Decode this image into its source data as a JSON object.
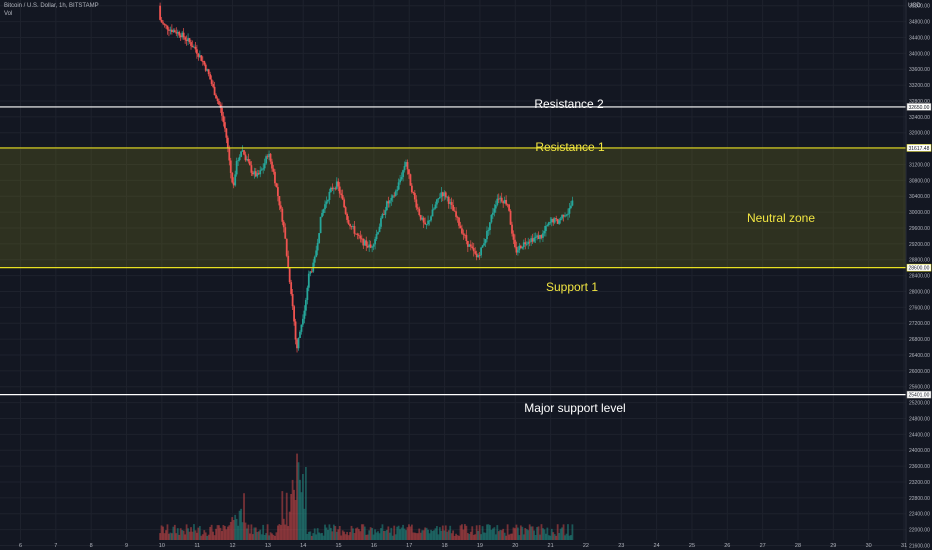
{
  "header": {
    "symbol_title": "Bitcoin / U.S. Dollar, 1h, BITSTAMP",
    "volume_label": "Vol",
    "currency": "USD"
  },
  "colors": {
    "background": "#131722",
    "grid": "#1e222d",
    "up_candle": "#26a69a",
    "down_candle": "#ef5350",
    "resistance_white": "#ffffff",
    "yellow_band": "#e8e020",
    "zone_fill": "rgba(120,120,30,0.28)",
    "annotation_white": "#ffffff",
    "annotation_yellow": "#f2e642"
  },
  "annotations": {
    "resistance_2": "Resistance 2",
    "resistance_1": "Resistance 1",
    "neutral_zone": "Neutral zone",
    "support_1": "Support 1",
    "major_support": "Major support level"
  },
  "chart_data": {
    "type": "candlestick",
    "title": "Bitcoin / U.S. Dollar, 1h, BITSTAMP",
    "ylabel": "USD",
    "ylim": [
      21400,
      35300
    ],
    "x_ticks": [
      "6",
      "7",
      "8",
      "9",
      "10",
      "11",
      "12",
      "13",
      "14",
      "15",
      "16",
      "17",
      "18",
      "19",
      "20",
      "21",
      "22",
      "23",
      "24",
      "25",
      "26",
      "27",
      "28",
      "29",
      "30",
      "31"
    ],
    "y_ticks": [
      35200,
      34800,
      34400,
      34000,
      33600,
      33200,
      32800,
      32400,
      32000,
      31600,
      31200,
      30800,
      30400,
      30000,
      29600,
      29200,
      28800,
      28400,
      28000,
      27600,
      27200,
      26800,
      26400,
      26000,
      25600,
      25200,
      24800,
      24400,
      24000,
      23600,
      23200,
      22800,
      22400,
      22000,
      21600
    ],
    "levels": [
      {
        "name": "Resistance 2",
        "price": "32650.00",
        "value": 32650
      },
      {
        "name": "Resistance 1",
        "price": "31617.48",
        "value": 31617
      },
      {
        "name": "Support 1",
        "price": "28600.00",
        "value": 28600
      },
      {
        "name": "Major support level",
        "price": "25401.00",
        "value": 25401
      }
    ],
    "price_path": [
      [
        9.95,
        35200
      ],
      [
        9.95,
        34900
      ],
      [
        10.1,
        34700
      ],
      [
        10.3,
        34600
      ],
      [
        10.55,
        34500
      ],
      [
        10.8,
        34300
      ],
      [
        11.0,
        34100
      ],
      [
        11.2,
        33800
      ],
      [
        11.35,
        33500
      ],
      [
        11.5,
        33100
      ],
      [
        11.7,
        32600
      ],
      [
        11.85,
        32000
      ],
      [
        11.95,
        31300
      ],
      [
        12.05,
        30600
      ],
      [
        12.15,
        31200
      ],
      [
        12.3,
        31600
      ],
      [
        12.45,
        31300
      ],
      [
        12.6,
        31000
      ],
      [
        12.75,
        30900
      ],
      [
        12.9,
        31100
      ],
      [
        13.05,
        31500
      ],
      [
        13.2,
        31000
      ],
      [
        13.35,
        30300
      ],
      [
        13.5,
        29600
      ],
      [
        13.6,
        28700
      ],
      [
        13.7,
        28000
      ],
      [
        13.8,
        27100
      ],
      [
        13.85,
        26500
      ],
      [
        13.95,
        27000
      ],
      [
        14.1,
        27700
      ],
      [
        14.2,
        28400
      ],
      [
        14.35,
        28700
      ],
      [
        14.45,
        29300
      ],
      [
        14.55,
        29900
      ],
      [
        14.7,
        30300
      ],
      [
        14.85,
        30600
      ],
      [
        15.0,
        30700
      ],
      [
        15.15,
        30300
      ],
      [
        15.3,
        29800
      ],
      [
        15.5,
        29500
      ],
      [
        15.65,
        29300
      ],
      [
        15.8,
        29200
      ],
      [
        15.95,
        29100
      ],
      [
        16.1,
        29400
      ],
      [
        16.25,
        29800
      ],
      [
        16.4,
        30200
      ],
      [
        16.55,
        30300
      ],
      [
        16.7,
        30600
      ],
      [
        16.85,
        31000
      ],
      [
        16.95,
        31300
      ],
      [
        17.05,
        30800
      ],
      [
        17.2,
        30300
      ],
      [
        17.35,
        29900
      ],
      [
        17.5,
        29600
      ],
      [
        17.65,
        29900
      ],
      [
        17.8,
        30200
      ],
      [
        17.95,
        30500
      ],
      [
        18.1,
        30400
      ],
      [
        18.25,
        30100
      ],
      [
        18.4,
        29800
      ],
      [
        18.55,
        29500
      ],
      [
        18.7,
        29200
      ],
      [
        18.85,
        29000
      ],
      [
        18.95,
        28850
      ],
      [
        19.1,
        29100
      ],
      [
        19.25,
        29500
      ],
      [
        19.4,
        30000
      ],
      [
        19.55,
        30400
      ],
      [
        19.7,
        30300
      ],
      [
        19.85,
        30200
      ],
      [
        19.95,
        29400
      ],
      [
        20.05,
        29000
      ],
      [
        20.2,
        29150
      ],
      [
        20.4,
        29300
      ],
      [
        20.6,
        29350
      ],
      [
        20.8,
        29400
      ],
      [
        20.95,
        29650
      ],
      [
        21.1,
        29800
      ],
      [
        21.25,
        29750
      ],
      [
        21.4,
        29950
      ],
      [
        21.55,
        30000
      ],
      [
        21.65,
        30250
      ]
    ],
    "volume": {
      "type": "bar",
      "note": "hourly volume histogram"
    }
  }
}
